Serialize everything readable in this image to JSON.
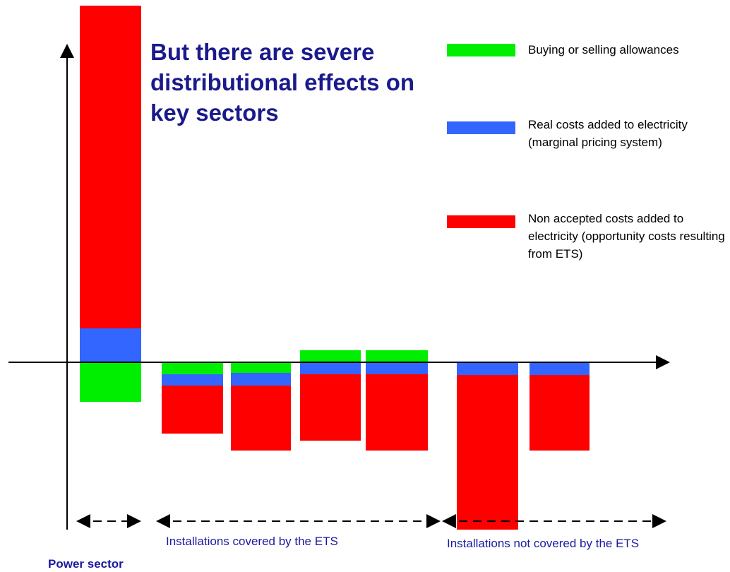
{
  "chart_data": {
    "type": "stacked_bar",
    "title": "But there are severe distributional effects on key sectors",
    "categories": [
      null,
      null,
      null,
      null,
      null,
      null,
      null
    ],
    "series": [
      {
        "name": "Buying or selling allowances",
        "color": "#00ee00",
        "values": [
          -56,
          -17,
          -15,
          17,
          17,
          0,
          0
        ]
      },
      {
        "name": "Real costs added to electricity (marginal pricing system)",
        "color": "#3366ff",
        "values": [
          48,
          -16,
          -18,
          -17,
          -17,
          -18,
          -18
        ]
      },
      {
        "name": "Non accepted costs added to electricity (opportunity costs resulting from ETS)",
        "color": "#ff0000",
        "values": [
          457,
          -68,
          -92,
          -94,
          -108,
          -219,
          -107
        ]
      }
    ],
    "ylim": [
      -240,
      510
    ],
    "annotations": [
      "Power sector",
      "Installations covered by the ETS",
      "Installations not covered by the ETS"
    ]
  }
}
